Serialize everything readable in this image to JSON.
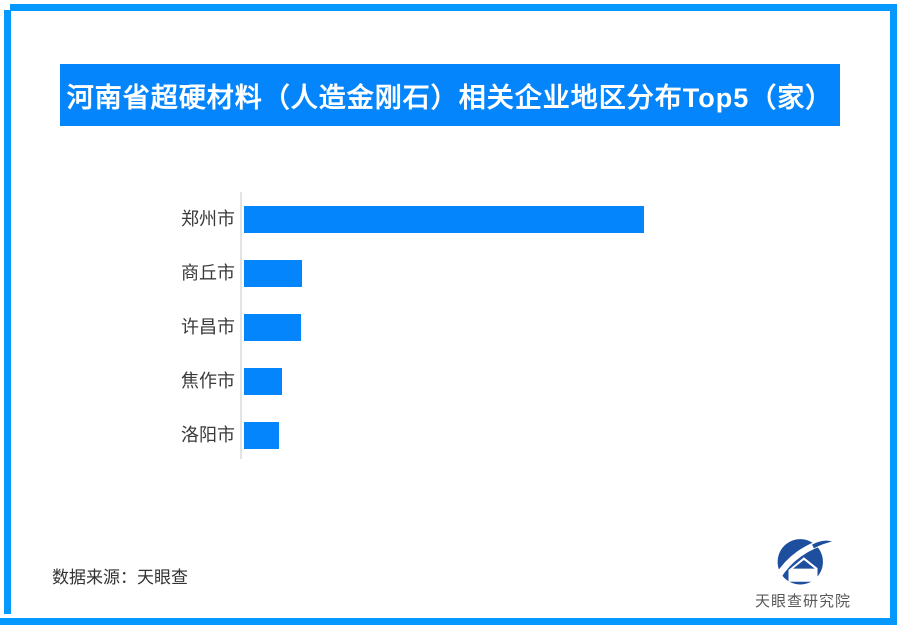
{
  "title": "河南省超硬材料（人造金刚石）相关企业地区分布Top5（家）",
  "footer": {
    "source": "数据来源：天眼查",
    "logo_text": "天眼查研究院"
  },
  "colors": {
    "banner_blue": "#0585FB",
    "bar_blue": "#0585FB",
    "frame_blue": "#0598FF",
    "axis_gray": "#E3E3E3",
    "label_dark": "#3A3A3A",
    "logo_navy": "#1D4F9E",
    "logo_text_gray": "#595959"
  },
  "chart_data": {
    "type": "bar",
    "orientation": "horizontal",
    "title": "河南省超硬材料（人造金刚石）相关企业地区分布Top5（家）",
    "categories": [
      "郑州市",
      "商丘市",
      "许昌市",
      "焦作市",
      "洛阳市"
    ],
    "values": [
      400,
      58,
      57,
      38,
      35
    ],
    "value_labels_shown": false,
    "value_note": "no numeric labels in image; values are relative bar lengths measured in px",
    "xlim": [
      0,
      420
    ],
    "xlabel": "",
    "ylabel": "",
    "grid": false,
    "legend": false,
    "axis_line": "left vertical, light gray"
  }
}
